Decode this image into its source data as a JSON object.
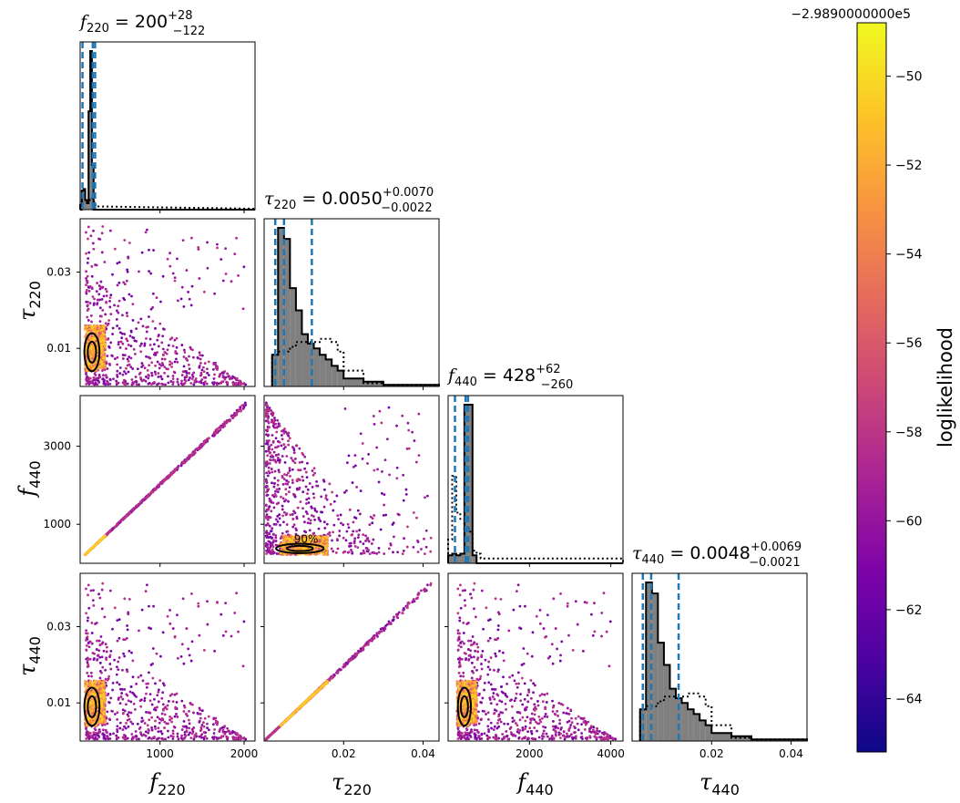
{
  "chart_data": {
    "type": "scatter",
    "layout": "corner",
    "parameters": [
      {
        "symbol": "f",
        "sub": "220",
        "range": [
          50,
          2130
        ],
        "ticks": [
          1000,
          2000
        ]
      },
      {
        "symbol": "τ",
        "sub": "220",
        "range": [
          0.0,
          0.044
        ],
        "ticks": [
          0.01,
          0.03
        ],
        "bottom_ticks": [
          0.02,
          0.04
        ]
      },
      {
        "symbol": "f",
        "sub": "440",
        "range": [
          0,
          4300
        ],
        "ticks": [
          1000,
          3000
        ],
        "bottom_ticks": [
          2000,
          4000
        ]
      },
      {
        "symbol": "τ",
        "sub": "440",
        "range": [
          0.0,
          0.044
        ],
        "ticks": [
          0.01,
          0.03
        ],
        "bottom_ticks": [
          0.02,
          0.04
        ]
      }
    ],
    "titles": [
      {
        "symbol": "f",
        "sub": "220",
        "value": "200",
        "plus": "+28",
        "minus": "−122"
      },
      {
        "symbol": "τ",
        "sub": "220",
        "value": "0.0050",
        "plus": "+0.0070",
        "minus": "−0.0022"
      },
      {
        "symbol": "f",
        "sub": "440",
        "value": "428",
        "plus": "+62",
        "minus": "−260"
      },
      {
        "symbol": "τ",
        "sub": "440",
        "value": "0.0048",
        "plus": "+0.0069",
        "minus": "−0.0021"
      }
    ],
    "axis_tick_labels": {
      "f220_bottom": [
        "1000",
        "2000"
      ],
      "tau220_left": [
        "0.01",
        "0.03"
      ],
      "tau220_bottom": [
        "0.02",
        "0.04"
      ],
      "f440_left": [
        "1000",
        "3000"
      ],
      "f440_bottom": [
        "2000",
        "4000"
      ],
      "tau440_left": [
        "0.01",
        "0.03"
      ],
      "tau440_bottom": [
        "0.02",
        "0.04"
      ]
    },
    "histograms": [
      {
        "param": 0,
        "bins": [
          50,
          70,
          90,
          110,
          130,
          150,
          170,
          190,
          210,
          230,
          250,
          270
        ],
        "posterior": [
          0.03,
          0.12,
          0.13,
          0.06,
          0.04,
          0.62,
          1.0,
          0.28,
          0.0,
          0.0,
          0.0
        ],
        "prior": [
          0.0,
          0.05,
          0.06,
          0.06,
          0.06,
          0.06,
          0.06,
          0.07,
          0.05,
          0.03,
          0.02
        ],
        "quantiles": [
          78,
          200,
          228
        ]
      },
      {
        "param": 1,
        "bins": [
          0.002,
          0.0035,
          0.005,
          0.0065,
          0.008,
          0.0095,
          0.011,
          0.0125,
          0.014,
          0.0155,
          0.017,
          0.0185,
          0.02,
          0.025,
          0.03,
          0.044
        ],
        "posterior": [
          0.2,
          1.0,
          0.93,
          0.62,
          0.48,
          0.33,
          0.27,
          0.24,
          0.2,
          0.17,
          0.13,
          0.1,
          0.05,
          0.03,
          0.01
        ],
        "prior": [
          0.2,
          0.22,
          0.22,
          0.25,
          0.28,
          0.28,
          0.28,
          0.28,
          0.3,
          0.3,
          0.28,
          0.22,
          0.1,
          0.02,
          0.01
        ],
        "quantiles": [
          0.0028,
          0.005,
          0.012
        ]
      },
      {
        "param": 2,
        "bins": [
          0,
          100,
          200,
          300,
          400,
          500,
          600,
          700,
          800,
          4300
        ],
        "posterior": [
          0.05,
          0.06,
          0.05,
          0.06,
          1.0,
          1.0,
          0.05,
          0.0,
          0.0
        ],
        "prior": [
          0.15,
          0.55,
          0.32,
          0.28,
          0.22,
          0.2,
          0.08,
          0.06,
          0.03
        ],
        "quantiles": [
          168,
          428,
          490
        ]
      },
      {
        "param": 3,
        "bins": [
          0.002,
          0.0035,
          0.005,
          0.0065,
          0.008,
          0.0095,
          0.011,
          0.0125,
          0.014,
          0.0155,
          0.017,
          0.0185,
          0.02,
          0.025,
          0.03,
          0.044
        ],
        "posterior": [
          0.2,
          1.0,
          0.93,
          0.62,
          0.48,
          0.33,
          0.27,
          0.24,
          0.2,
          0.17,
          0.13,
          0.1,
          0.05,
          0.03,
          0.01
        ],
        "prior": [
          0.2,
          0.22,
          0.22,
          0.25,
          0.28,
          0.28,
          0.28,
          0.28,
          0.3,
          0.3,
          0.28,
          0.22,
          0.1,
          0.02,
          0.01
        ],
        "quantiles": [
          0.0027,
          0.0048,
          0.0117
        ]
      }
    ],
    "contour_label": "90%",
    "colorbar": {
      "label": "loglikelihood",
      "offset_text": "−2.9890000000e5",
      "range": [
        -65.2,
        -48.8
      ],
      "ticks": [
        -50,
        -52,
        -54,
        -56,
        -58,
        -60,
        -62,
        -64
      ],
      "tick_labels": [
        "−50",
        "−52",
        "−54",
        "−56",
        "−58",
        "−60",
        "−62",
        "−64"
      ],
      "colormap": "plasma"
    },
    "colors": {
      "posterior_fill": "#808080",
      "quantile_line": "#1f77b4",
      "contour": "#000000",
      "hist_edge": "#000000"
    }
  }
}
